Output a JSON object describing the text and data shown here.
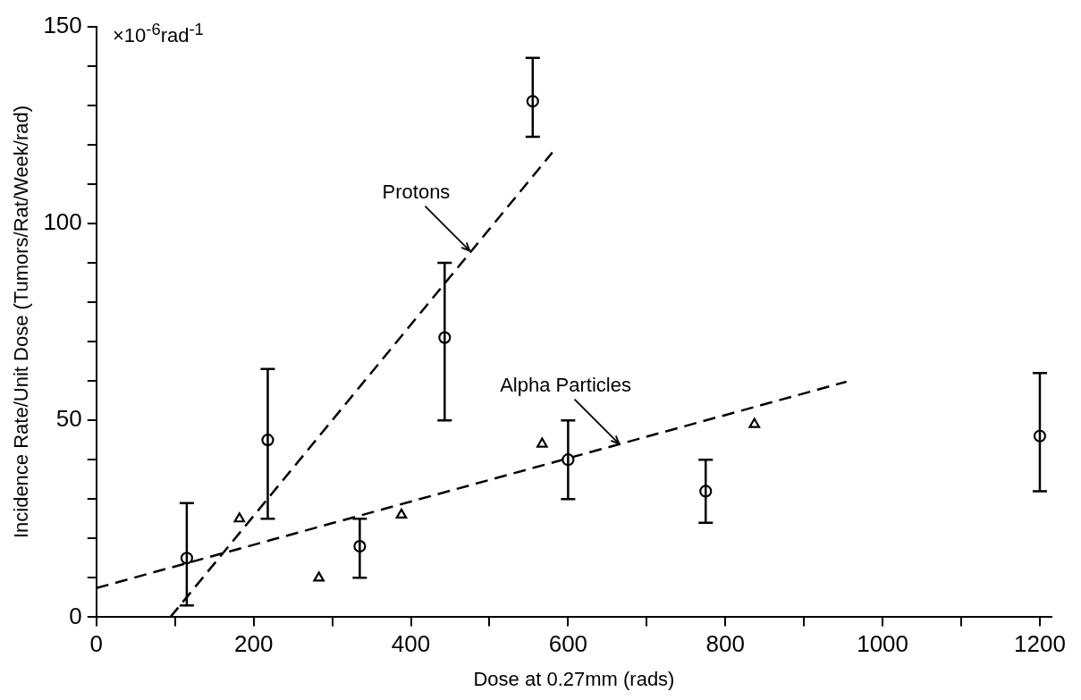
{
  "chart_data": {
    "type": "scatter",
    "xlabel": "Dose at 0.27mm (rads)",
    "ylabel": "Incidence Rate/Unit Dose (Tumors/Rat/Week/rad)",
    "xlim": [
      0,
      1215
    ],
    "ylim": [
      0,
      150
    ],
    "xticks": [
      0,
      {
        "value": 100,
        "label": null
      },
      200,
      {
        "value": 300,
        "label": null
      },
      400,
      {
        "value": 500,
        "label": null
      },
      600,
      {
        "value": 700,
        "label": null
      },
      800,
      {
        "value": 900,
        "label": null
      },
      1000,
      {
        "value": 1100,
        "label": null
      },
      1200
    ],
    "yticks": [
      0,
      {
        "value": 10,
        "label": null
      },
      {
        "value": 20,
        "label": null
      },
      {
        "value": 30,
        "label": null
      },
      {
        "value": 40,
        "label": null
      },
      50,
      {
        "value": 60,
        "label": null
      },
      {
        "value": 70,
        "label": null
      },
      {
        "value": 80,
        "label": null
      },
      {
        "value": 90,
        "label": null
      },
      100,
      {
        "value": 110,
        "label": null
      },
      {
        "value": 120,
        "label": null
      },
      {
        "value": 130,
        "label": null
      },
      {
        "value": 140,
        "label": null
      },
      150
    ],
    "grid": false,
    "legend": false,
    "series": [
      {
        "type": "scatter",
        "marker": "circle",
        "color": "#000000",
        "x": [
          115,
          218,
          335,
          443,
          555
        ],
        "values": [
          15,
          45,
          18,
          71,
          131
        ],
        "errors": [
          [
            3,
            29
          ],
          [
            25,
            63
          ],
          [
            10,
            25
          ],
          [
            50,
            90
          ],
          [
            122,
            142
          ]
        ]
      },
      {
        "type": "scatter",
        "marker": "circle",
        "color": "#000000",
        "x": [
          600,
          775,
          1200
        ],
        "values": [
          40,
          32,
          46
        ],
        "errors": [
          [
            30,
            50
          ],
          [
            24,
            40
          ],
          [
            32,
            62
          ]
        ]
      },
      {
        "type": "scatter",
        "marker": "triangle",
        "color": "#000000",
        "x": [
          182,
          283,
          388,
          567,
          837
        ],
        "values": [
          25,
          10,
          26,
          44,
          49
        ]
      },
      {
        "type": "line",
        "marker": "none",
        "line_style": "dashed",
        "color": "#000000",
        "x": [
          94,
          580
        ],
        "values": [
          0,
          118
        ]
      },
      {
        "type": "line",
        "marker": "none",
        "line_style": "dashed",
        "color": "#000000",
        "x": [
          0,
          954
        ],
        "values": [
          7.4,
          59.8
        ]
      }
    ],
    "annotations": [
      "×10$^{-6}$rad$^{-1}$",
      {
        "text": "Protons",
        "x": 475,
        "y": 93
      },
      {
        "text": "Alpha Particles",
        "x": 665,
        "y": 44
      }
    ]
  }
}
